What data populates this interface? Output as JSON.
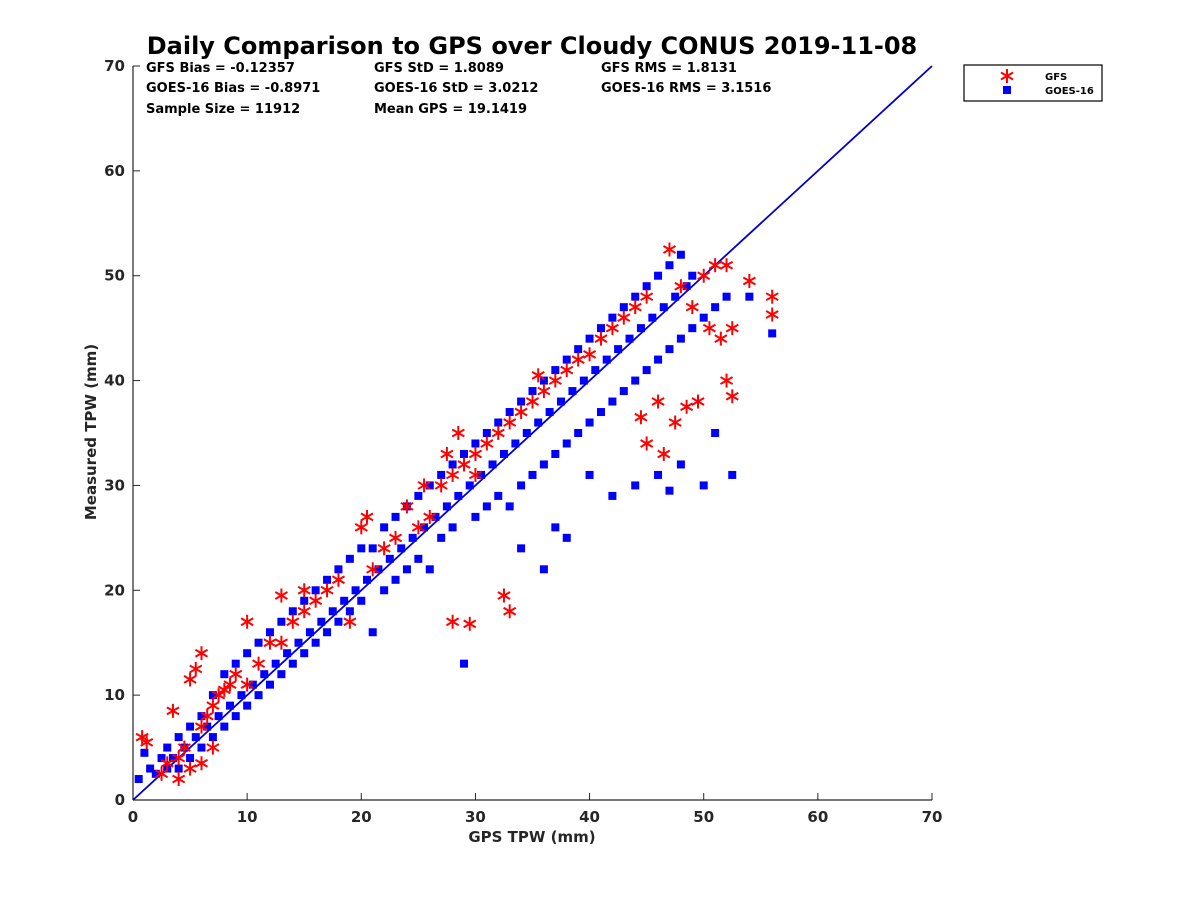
{
  "chart_data": {
    "type": "scatter",
    "title": "Daily Comparison to GPS over Cloudy CONUS 2019-11-08",
    "xlabel": "GPS TPW (mm)",
    "ylabel": "Measured TPW (mm)",
    "xlim": [
      0,
      70
    ],
    "ylim": [
      0,
      70
    ],
    "xticks": [
      "0",
      "10",
      "20",
      "30",
      "40",
      "50",
      "60",
      "70"
    ],
    "yticks": [
      "0",
      "10",
      "20",
      "30",
      "40",
      "50",
      "60",
      "70"
    ],
    "grid": false,
    "legend_position": "outside-top-right",
    "reference_line": {
      "from": [
        0,
        0
      ],
      "to": [
        70,
        70
      ],
      "color": "#0000cc"
    },
    "stats": [
      [
        "GFS Bias = -0.12357",
        "GFS StD = 1.8089",
        "GFS RMS = 1.8131"
      ],
      [
        "GOES-16 Bias = -0.8971",
        "GOES-16 StD = 3.0212",
        "GOES-16 RMS = 3.1516"
      ],
      [
        "Sample Size = 11912",
        "Mean GPS = 19.1419"
      ]
    ],
    "series": [
      {
        "name": "GFS",
        "marker": "asterisk",
        "color": "#ff0000",
        "points": [
          [
            0.8,
            6
          ],
          [
            1.2,
            5.5
          ],
          [
            2.5,
            2.5
          ],
          [
            3,
            3.5
          ],
          [
            3.5,
            8.5
          ],
          [
            4,
            4
          ],
          [
            4.5,
            5
          ],
          [
            5,
            11.5
          ],
          [
            5.5,
            12.5
          ],
          [
            6,
            14
          ],
          [
            6,
            7
          ],
          [
            6.5,
            8
          ],
          [
            7,
            9
          ],
          [
            7.5,
            10
          ],
          [
            8,
            10.5
          ],
          [
            8.5,
            11
          ],
          [
            9,
            12
          ],
          [
            10,
            17
          ],
          [
            10,
            11
          ],
          [
            11,
            13
          ],
          [
            12,
            15
          ],
          [
            13,
            19.5
          ],
          [
            13,
            15
          ],
          [
            14,
            17
          ],
          [
            15,
            20
          ],
          [
            15,
            18
          ],
          [
            16,
            19
          ],
          [
            17,
            20
          ],
          [
            18,
            21
          ],
          [
            19,
            17
          ],
          [
            20,
            26
          ],
          [
            20.5,
            27
          ],
          [
            21,
            22
          ],
          [
            22,
            24
          ],
          [
            23,
            25
          ],
          [
            24,
            28
          ],
          [
            25,
            26
          ],
          [
            25.5,
            30
          ],
          [
            26,
            27
          ],
          [
            27,
            30
          ],
          [
            27.5,
            33
          ],
          [
            28,
            31
          ],
          [
            28.5,
            35
          ],
          [
            28,
            17
          ],
          [
            29,
            32
          ],
          [
            29.5,
            16.8
          ],
          [
            30,
            33
          ],
          [
            30,
            31
          ],
          [
            31,
            34
          ],
          [
            32,
            35
          ],
          [
            32.5,
            19.5
          ],
          [
            33,
            18
          ],
          [
            33,
            36
          ],
          [
            34,
            37
          ],
          [
            35,
            38
          ],
          [
            35.5,
            40.5
          ],
          [
            36,
            39
          ],
          [
            37,
            40
          ],
          [
            38,
            41
          ],
          [
            39,
            42
          ],
          [
            40,
            42.5
          ],
          [
            41,
            44
          ],
          [
            42,
            45
          ],
          [
            43,
            46
          ],
          [
            44,
            47
          ],
          [
            44.5,
            36.5
          ],
          [
            45,
            34
          ],
          [
            45,
            48
          ],
          [
            46,
            38
          ],
          [
            46.5,
            33
          ],
          [
            47,
            52.5
          ],
          [
            47.5,
            36
          ],
          [
            48,
            49
          ],
          [
            48.5,
            37.5
          ],
          [
            49,
            47
          ],
          [
            49.5,
            38
          ],
          [
            50,
            50
          ],
          [
            50.5,
            45
          ],
          [
            51,
            51
          ],
          [
            51.5,
            44
          ],
          [
            52,
            40
          ],
          [
            52,
            51
          ],
          [
            52.5,
            38.5
          ],
          [
            52.5,
            45
          ],
          [
            54,
            49.5
          ],
          [
            56,
            48
          ],
          [
            56,
            46.3
          ],
          [
            4,
            2
          ],
          [
            5,
            3
          ],
          [
            6,
            3.5
          ],
          [
            7,
            5
          ]
        ]
      },
      {
        "name": "GOES-16",
        "marker": "square",
        "color": "#0000ff",
        "points": [
          [
            0.5,
            2
          ],
          [
            1,
            4.5
          ],
          [
            1.5,
            3
          ],
          [
            2,
            2.5
          ],
          [
            2.5,
            4
          ],
          [
            3,
            3
          ],
          [
            3,
            5
          ],
          [
            3.5,
            4
          ],
          [
            4,
            3
          ],
          [
            4,
            6
          ],
          [
            4.5,
            5
          ],
          [
            5,
            4
          ],
          [
            5,
            7
          ],
          [
            5.5,
            6
          ],
          [
            6,
            5
          ],
          [
            6,
            8
          ],
          [
            6.5,
            7
          ],
          [
            7,
            6
          ],
          [
            7,
            10
          ],
          [
            7.5,
            8
          ],
          [
            8,
            7
          ],
          [
            8,
            12
          ],
          [
            8.5,
            9
          ],
          [
            9,
            8
          ],
          [
            9,
            13
          ],
          [
            9.5,
            10
          ],
          [
            10,
            9
          ],
          [
            10,
            14
          ],
          [
            10.5,
            11
          ],
          [
            11,
            10
          ],
          [
            11,
            15
          ],
          [
            11.5,
            12
          ],
          [
            12,
            11
          ],
          [
            12,
            16
          ],
          [
            12.5,
            13
          ],
          [
            13,
            12
          ],
          [
            13,
            17
          ],
          [
            13.5,
            14
          ],
          [
            14,
            13
          ],
          [
            14,
            18
          ],
          [
            14.5,
            15
          ],
          [
            15,
            14
          ],
          [
            15,
            19
          ],
          [
            15.5,
            16
          ],
          [
            16,
            15
          ],
          [
            16,
            20
          ],
          [
            16.5,
            17
          ],
          [
            17,
            16
          ],
          [
            17,
            21
          ],
          [
            17.5,
            18
          ],
          [
            18,
            17
          ],
          [
            18,
            22
          ],
          [
            18.5,
            19
          ],
          [
            19,
            18
          ],
          [
            19,
            23
          ],
          [
            19.5,
            20
          ],
          [
            20,
            19
          ],
          [
            20,
            24
          ],
          [
            20.5,
            21
          ],
          [
            21,
            16
          ],
          [
            21,
            24
          ],
          [
            21.5,
            22
          ],
          [
            22,
            20
          ],
          [
            22,
            26
          ],
          [
            22.5,
            23
          ],
          [
            23,
            21
          ],
          [
            23,
            27
          ],
          [
            23.5,
            24
          ],
          [
            24,
            22
          ],
          [
            24,
            28
          ],
          [
            24.5,
            25
          ],
          [
            25,
            23
          ],
          [
            25,
            29
          ],
          [
            25.5,
            26
          ],
          [
            26,
            22
          ],
          [
            26,
            30
          ],
          [
            26.5,
            27
          ],
          [
            27,
            25
          ],
          [
            27,
            31
          ],
          [
            27.5,
            28
          ],
          [
            28,
            26
          ],
          [
            28,
            32
          ],
          [
            28.5,
            29
          ],
          [
            29,
            13
          ],
          [
            29,
            33
          ],
          [
            29.5,
            30
          ],
          [
            30,
            27
          ],
          [
            30,
            34
          ],
          [
            30.5,
            31
          ],
          [
            31,
            28
          ],
          [
            31,
            35
          ],
          [
            31.5,
            32
          ],
          [
            32,
            29
          ],
          [
            32,
            36
          ],
          [
            32.5,
            33
          ],
          [
            33,
            28
          ],
          [
            33,
            37
          ],
          [
            33.5,
            34
          ],
          [
            34,
            30
          ],
          [
            34,
            38
          ],
          [
            34.5,
            35
          ],
          [
            35,
            31
          ],
          [
            35,
            39
          ],
          [
            35.5,
            36
          ],
          [
            36,
            32
          ],
          [
            36,
            40
          ],
          [
            36.5,
            37
          ],
          [
            37,
            33
          ],
          [
            37,
            41
          ],
          [
            37.5,
            38
          ],
          [
            38,
            34
          ],
          [
            38,
            42
          ],
          [
            38.5,
            39
          ],
          [
            39,
            35
          ],
          [
            39,
            43
          ],
          [
            39.5,
            40
          ],
          [
            40,
            36
          ],
          [
            40,
            44
          ],
          [
            40.5,
            41
          ],
          [
            41,
            37
          ],
          [
            41,
            45
          ],
          [
            41.5,
            42
          ],
          [
            42,
            38
          ],
          [
            42,
            46
          ],
          [
            42.5,
            43
          ],
          [
            43,
            39
          ],
          [
            43,
            47
          ],
          [
            43.5,
            44
          ],
          [
            44,
            40
          ],
          [
            44,
            48
          ],
          [
            44.5,
            45
          ],
          [
            45,
            41
          ],
          [
            45,
            49
          ],
          [
            45.5,
            46
          ],
          [
            46,
            42
          ],
          [
            46,
            50
          ],
          [
            46.5,
            47
          ],
          [
            47,
            43
          ],
          [
            47,
            51
          ],
          [
            47.5,
            48
          ],
          [
            48,
            44
          ],
          [
            48,
            52
          ],
          [
            48.5,
            49
          ],
          [
            49,
            45
          ],
          [
            49,
            50
          ],
          [
            50,
            46
          ],
          [
            50,
            30
          ],
          [
            51,
            47
          ],
          [
            51,
            35
          ],
          [
            52,
            48
          ],
          [
            52.5,
            31
          ],
          [
            54,
            48
          ],
          [
            56,
            44.5
          ],
          [
            34,
            24
          ],
          [
            36,
            22
          ],
          [
            37,
            26
          ],
          [
            38,
            25
          ],
          [
            40,
            31
          ],
          [
            42,
            29
          ],
          [
            44,
            30
          ],
          [
            46,
            31
          ],
          [
            47,
            29.5
          ],
          [
            48,
            32
          ]
        ]
      }
    ]
  }
}
